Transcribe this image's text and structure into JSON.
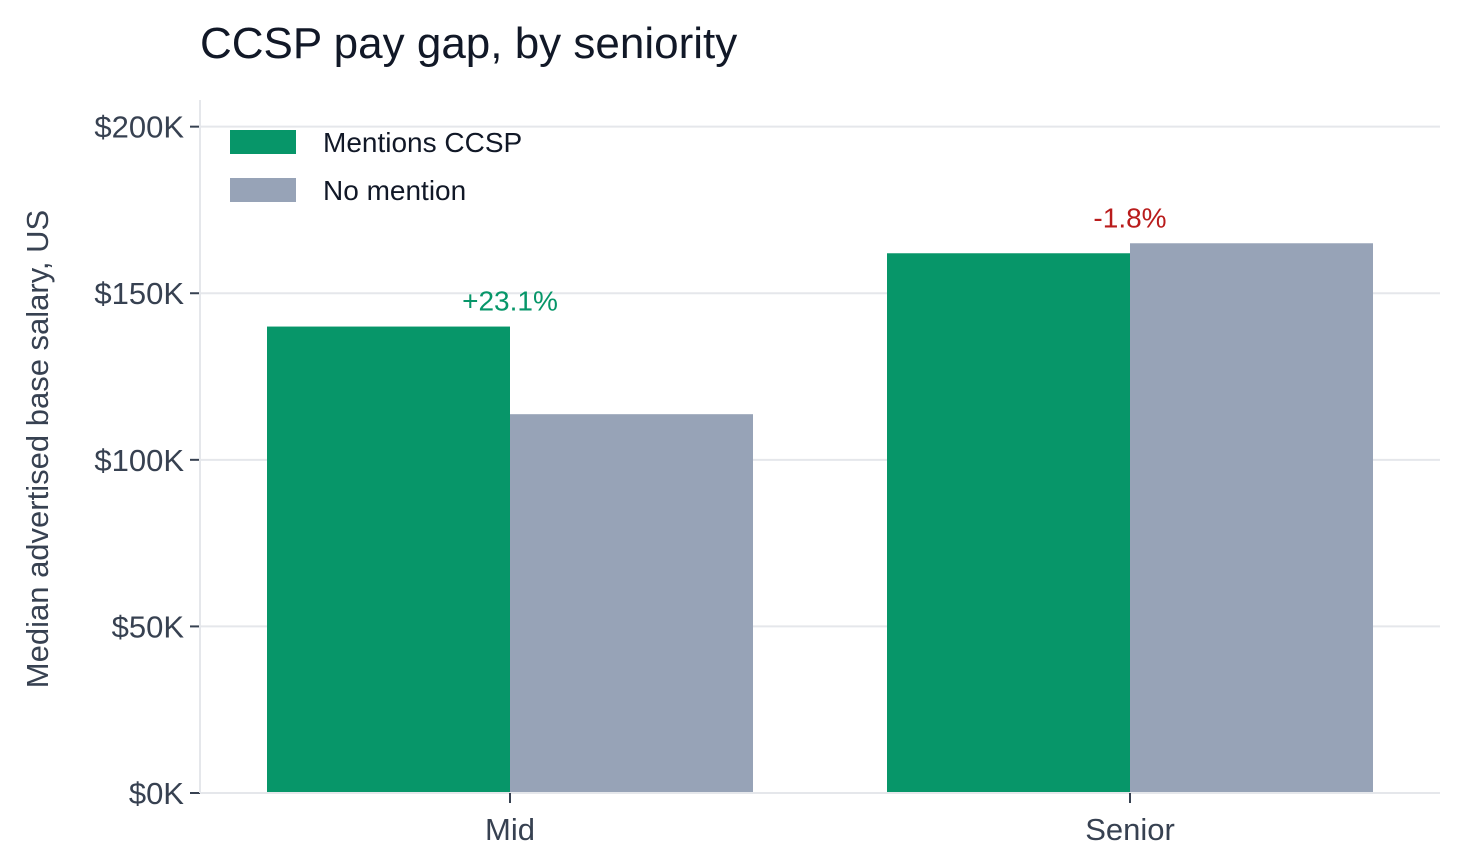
{
  "chart_data": {
    "type": "bar",
    "title": "CCSP pay gap, by seniority",
    "xlabel": "",
    "ylabel": "Median advertised base salary, US",
    "categories": [
      "Mid",
      "Senior"
    ],
    "series": [
      {
        "name": "Mentions CCSP",
        "values": [
          140000,
          162000
        ],
        "color": "#079669"
      },
      {
        "name": "No mention",
        "values": [
          113700,
          165000
        ],
        "color": "#97a3b7"
      }
    ],
    "ylim": [
      0,
      208000
    ],
    "yticks": [
      0,
      50000,
      100000,
      150000,
      200000
    ],
    "ytick_labels": [
      "$0K",
      "$50K",
      "$100K",
      "$150K",
      "$200K"
    ],
    "annotations": [
      {
        "category": "Mid",
        "text": "+23.1%",
        "color": "#079669"
      },
      {
        "category": "Senior",
        "text": "-1.8%",
        "color": "#b91c1c"
      }
    ],
    "grid": true,
    "legend_position": "top-left"
  }
}
